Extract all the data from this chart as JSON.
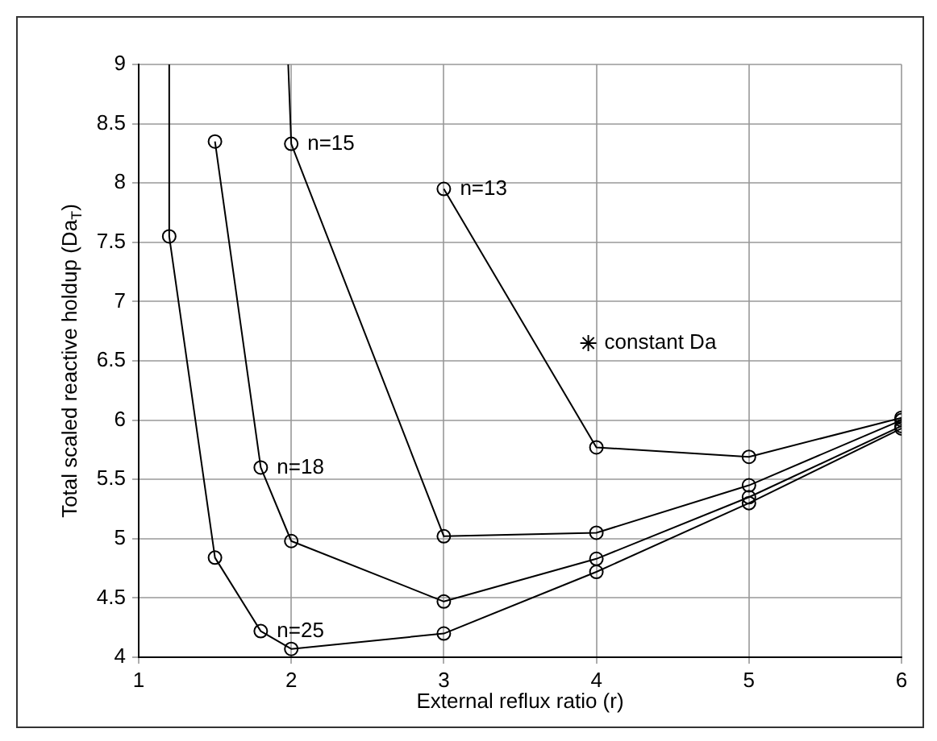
{
  "chart_data": {
    "type": "line",
    "xlabel": "External reflux ratio (r)",
    "ylabel": "Total scaled reactive holdup (Da$_{T}$)",
    "xlim": [
      1,
      6
    ],
    "xticks": [
      1,
      2,
      3,
      4,
      5,
      6
    ],
    "ylim": [
      4,
      9
    ],
    "yticks": [
      4,
      4.5,
      5,
      5.5,
      6,
      6.5,
      7,
      7.5,
      8,
      8.5,
      9
    ],
    "grid": true,
    "marker": "circle",
    "legend": "right",
    "series": [
      {
        "x": [
          1.2,
          1.2,
          1.5,
          1.8,
          2,
          3,
          4,
          5,
          6
        ],
        "values": [
          9,
          7.55,
          4.84,
          4.22,
          4.07,
          4.2,
          4.72,
          5.3,
          5.93
        ],
        "color": "#000000"
      },
      {
        "x": [
          1.5,
          1.8,
          2,
          3,
          4,
          5,
          6
        ],
        "values": [
          8.35,
          5.6,
          4.98,
          4.47,
          4.83,
          5.35,
          5.95
        ],
        "color": "#000000"
      },
      {
        "x": [
          1.98,
          2,
          3,
          4,
          5,
          6
        ],
        "values": [
          9,
          8.33,
          5.02,
          5.05,
          5.45,
          6.0
        ],
        "color": "#000000"
      },
      {
        "x": [
          3,
          4,
          5,
          6
        ],
        "values": [
          7.95,
          5.77,
          5.69,
          6.02
        ],
        "color": "#000000"
      },
      {
        "type": "scatter",
        "name": "constant Da",
        "marker": "star",
        "color": "#000000"
      }
    ],
    "annotations": [
      {
        "text": "n=25",
        "x": 1.8,
        "y": 4.22
      },
      {
        "text": "n=18",
        "x": 1.8,
        "y": 5.6
      },
      {
        "text": "n=15",
        "x": 2,
        "y": 8.33
      },
      {
        "text": "n=13",
        "x": 3,
        "y": 7.95
      }
    ]
  }
}
